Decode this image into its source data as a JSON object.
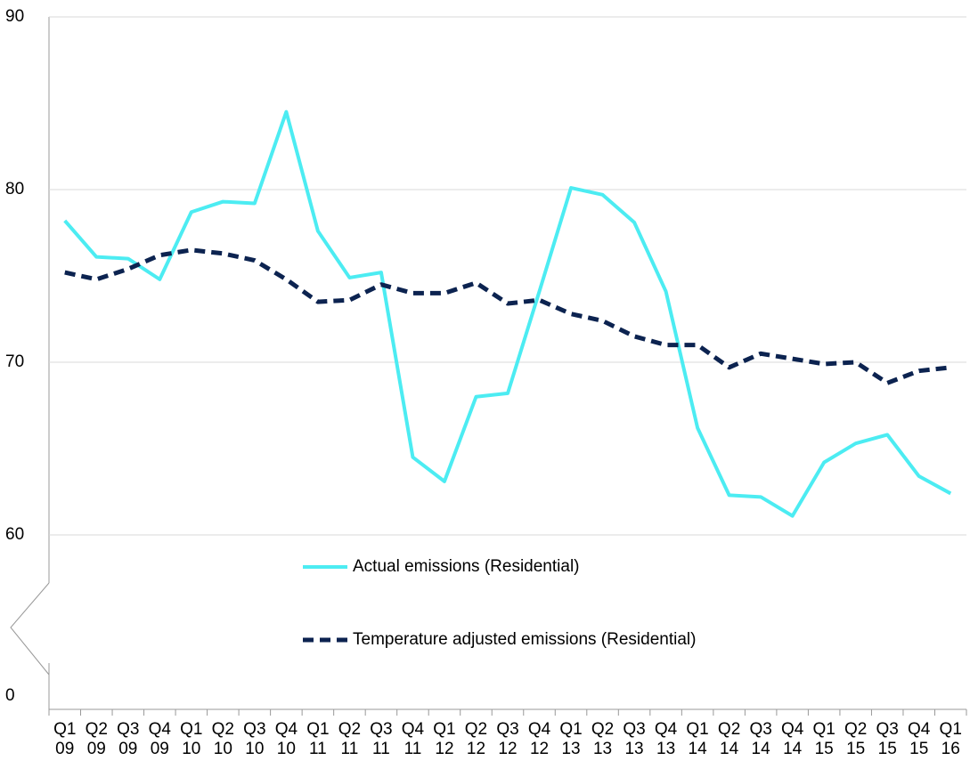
{
  "chart_data": {
    "type": "line",
    "categories": [
      "Q1 09",
      "Q2 09",
      "Q3 09",
      "Q4 09",
      "Q1 10",
      "Q2 10",
      "Q3 10",
      "Q4 10",
      "Q1 11",
      "Q2 11",
      "Q3 11",
      "Q4 11",
      "Q1 12",
      "Q2 12",
      "Q3 12",
      "Q4 12",
      "Q1 13",
      "Q2 13",
      "Q3 13",
      "Q4 13",
      "Q1 14",
      "Q2 14",
      "Q3 14",
      "Q4 14",
      "Q1 15",
      "Q2 15",
      "Q3 15",
      "Q4 15",
      "Q1 16"
    ],
    "series": [
      {
        "name": "Actual emissions (Residential)",
        "color": "#4cecf2",
        "dash": false,
        "values": [
          78.2,
          76.1,
          76.0,
          74.8,
          78.7,
          79.3,
          79.2,
          84.5,
          77.6,
          74.9,
          75.2,
          64.5,
          63.1,
          68.0,
          68.2,
          74.1,
          80.1,
          79.7,
          78.1,
          74.1,
          66.2,
          62.3,
          62.2,
          61.1,
          64.2,
          65.3,
          65.8,
          63.4,
          62.4
        ]
      },
      {
        "name": "Temperature adjusted emissions (Residential)",
        "color": "#0c2350",
        "dash": true,
        "values": [
          75.2,
          74.8,
          75.4,
          76.2,
          76.5,
          76.3,
          75.9,
          74.8,
          73.5,
          73.6,
          74.5,
          74.0,
          74.0,
          74.6,
          73.4,
          73.6,
          72.8,
          72.4,
          71.5,
          71.0,
          71.0,
          69.7,
          70.5,
          70.2,
          69.9,
          70.0,
          68.8,
          69.5,
          69.7
        ]
      }
    ],
    "ylim": [
      0,
      90
    ],
    "yticks": [
      0,
      60,
      70,
      80,
      90
    ],
    "y_axis_break": true,
    "grid": true,
    "legend": "bottom"
  }
}
